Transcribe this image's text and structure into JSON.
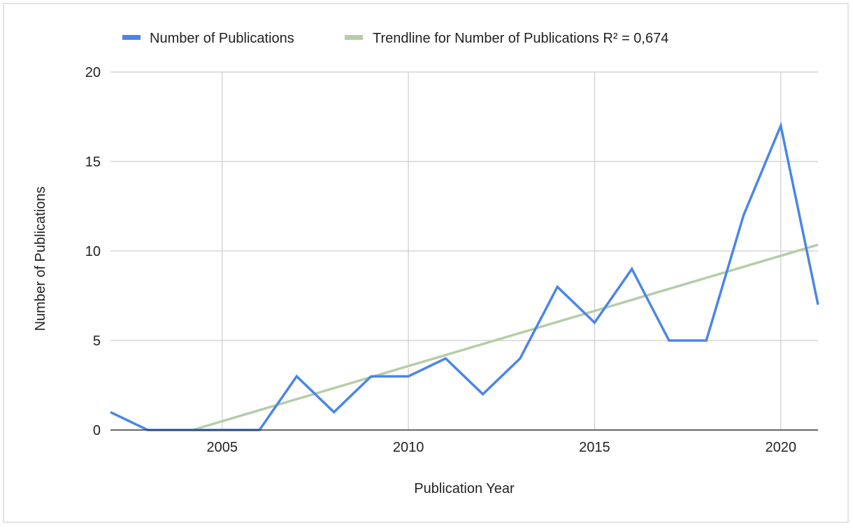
{
  "chart_data": {
    "type": "line",
    "title": "",
    "xlabel": "Publication Year",
    "ylabel": "Number of Publications",
    "xlim": [
      2002,
      2021
    ],
    "ylim": [
      0,
      20
    ],
    "x_ticks": [
      "2005",
      "2010",
      "2015",
      "2020"
    ],
    "y_ticks": [
      "0",
      "5",
      "10",
      "15",
      "20"
    ],
    "grid": true,
    "legend_position": "top-left",
    "series": [
      {
        "name": "Number of Publications",
        "color": "#4a86e8",
        "x": [
          2002,
          2003,
          2004,
          2005,
          2006,
          2007,
          2008,
          2009,
          2010,
          2011,
          2012,
          2013,
          2014,
          2015,
          2016,
          2017,
          2018,
          2019,
          2020,
          2021
        ],
        "values": [
          1,
          0,
          0,
          0,
          0,
          3,
          1,
          3,
          3,
          4,
          2,
          4,
          8,
          6,
          9,
          5,
          5,
          12,
          17,
          7
        ]
      }
    ],
    "trendline": {
      "name": "Trendline for Number of Publications R² = 0,674",
      "color": "#b6cda8",
      "x": [
        2004.2,
        2021
      ],
      "y": [
        0,
        10.35
      ]
    }
  }
}
